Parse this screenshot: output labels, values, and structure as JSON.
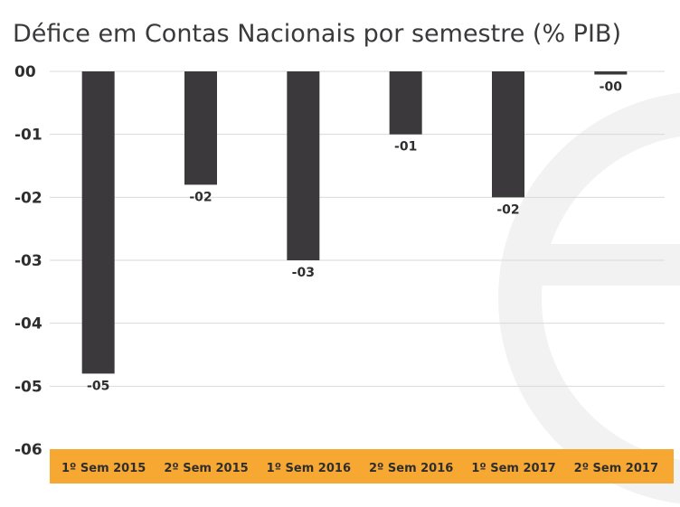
{
  "chart_data": {
    "type": "bar",
    "title": "Défice em Contas Nacionais por semestre (% PIB)",
    "xlabel": "",
    "ylabel": "",
    "categories": [
      "1º Sem 2015",
      "2º Sem 2015",
      "1º Sem 2016",
      "2º Sem 2016",
      "1º Sem 2017",
      "2º Sem 2017"
    ],
    "values": [
      -4.8,
      -1.8,
      -3.0,
      -1.0,
      -2.0,
      -0.05
    ],
    "data_labels": [
      "-05",
      "-02",
      "-03",
      "-01",
      "-02",
      "-00"
    ],
    "yticks": [
      0,
      -1,
      -2,
      -3,
      -4,
      -5,
      -6
    ],
    "ytick_labels": [
      "00",
      "-01",
      "-02",
      "-03",
      "-04",
      "-05",
      "-06"
    ],
    "ylim": [
      -6,
      0
    ],
    "grid": true,
    "legend": "none",
    "colors": {
      "bar": "#3b393c",
      "category_band": "#f7a833",
      "grid": "#d9d9d9",
      "text": "#2e2e30",
      "watermark": "#f2f2f2"
    }
  }
}
